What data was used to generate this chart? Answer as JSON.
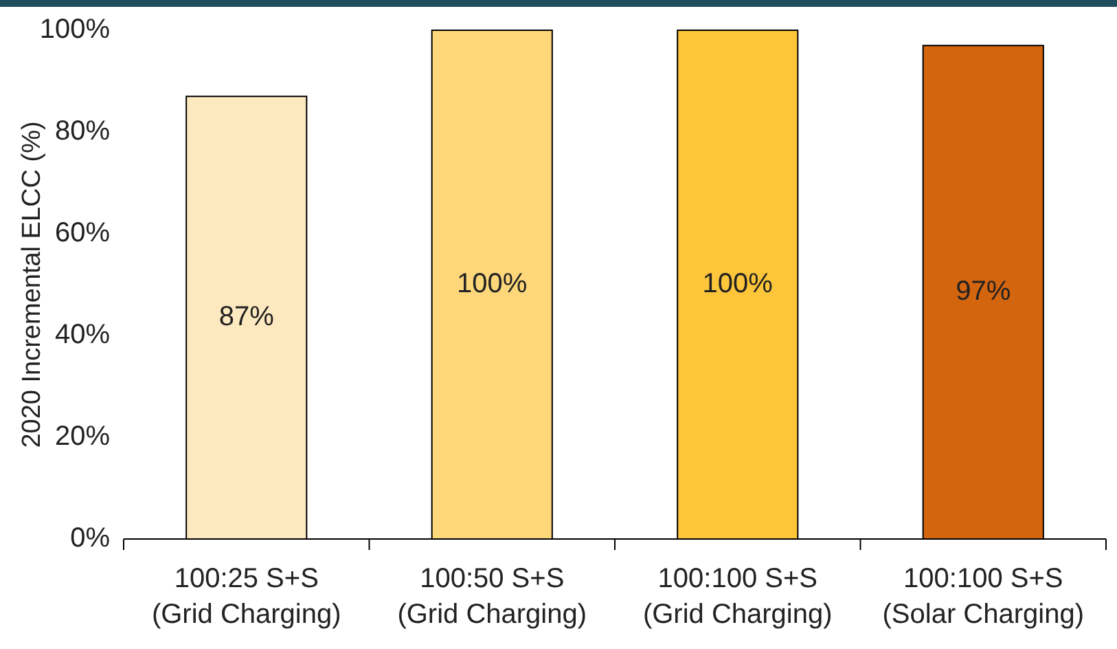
{
  "chart_data": {
    "type": "bar",
    "ylabel": "2020 Incremental ELCC (%)",
    "categories": [
      "100:25 S+S\n(Grid Charging)",
      "100:50 S+S\n(Grid Charging)",
      "100:100 S+S\n(Grid Charging)",
      "100:100 S+S\n(Solar Charging)"
    ],
    "values": [
      87,
      100,
      100,
      97
    ],
    "colors": [
      "#fde9bf",
      "#fdd77a",
      "#fdc53a",
      "#d4650f"
    ],
    "value_labels": [
      "87%",
      "100%",
      "100%",
      "97%"
    ],
    "ylim": [
      0,
      100
    ],
    "yticks": [
      {
        "value": 0,
        "label": "0%"
      },
      {
        "value": 20,
        "label": "20%"
      },
      {
        "value": 40,
        "label": "40%"
      },
      {
        "value": 60,
        "label": "60%"
      },
      {
        "value": 80,
        "label": "80%"
      },
      {
        "value": 100,
        "label": "100%"
      }
    ]
  }
}
